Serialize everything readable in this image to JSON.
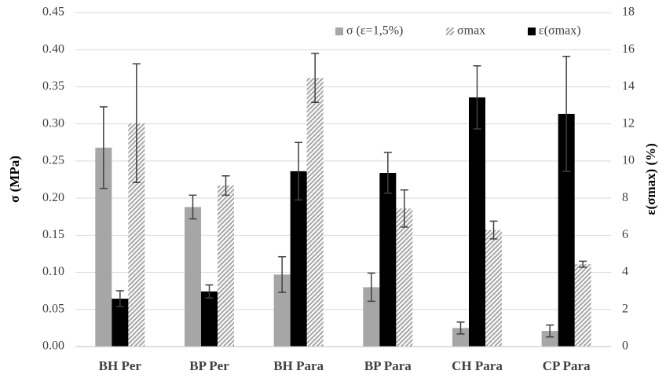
{
  "chart_data": {
    "type": "bar",
    "categories": [
      "BH Per",
      "BP Per",
      "BH Para",
      "BP Para",
      "CH Para",
      "CP Para"
    ],
    "ylabel": "σ (MPa)",
    "y2label": "ε(σmax) (%)",
    "ylim": [
      0,
      0.45
    ],
    "yticks": [
      {
        "value": 0,
        "label": "0.00"
      },
      {
        "value": 0.05,
        "label": "0.05"
      },
      {
        "value": 0.1,
        "label": "0.10"
      },
      {
        "value": 0.15,
        "label": "0.15"
      },
      {
        "value": 0.2,
        "label": "0.20"
      },
      {
        "value": 0.25,
        "label": "0.25"
      },
      {
        "value": 0.3,
        "label": "0.30"
      },
      {
        "value": 0.35,
        "label": "0.35"
      },
      {
        "value": 0.4,
        "label": "0.40"
      },
      {
        "value": 0.45,
        "label": "0.45"
      }
    ],
    "y2lim": [
      0,
      18
    ],
    "y2ticks": [
      0,
      2,
      4,
      6,
      8,
      10,
      12,
      14,
      16,
      18
    ],
    "grid": true,
    "legend": "top-right",
    "series": [
      {
        "name": "σ (ε=1,5%)",
        "color": "#a6a6a6",
        "values": [
          0.268,
          0.188,
          0.097,
          0.08,
          0.025,
          0.021
        ],
        "errors": [
          0.055,
          0.016,
          0.024,
          0.019,
          0.008,
          0.008
        ]
      },
      {
        "name": "σmax",
        "color": "#a6a6a6",
        "pattern": "hatch",
        "values": [
          0.301,
          0.217,
          0.362,
          0.186,
          0.157,
          0.111
        ],
        "errors": [
          0.08,
          0.013,
          0.033,
          0.025,
          0.012,
          0.004
        ]
      },
      {
        "name": "ε(σmax)",
        "color": "#000000",
        "axis": "y2",
        "values": [
          2.58,
          2.97,
          9.45,
          9.36,
          13.43,
          12.54
        ],
        "errors": [
          0.43,
          0.35,
          1.55,
          1.1,
          1.7,
          3.1
        ]
      }
    ]
  }
}
